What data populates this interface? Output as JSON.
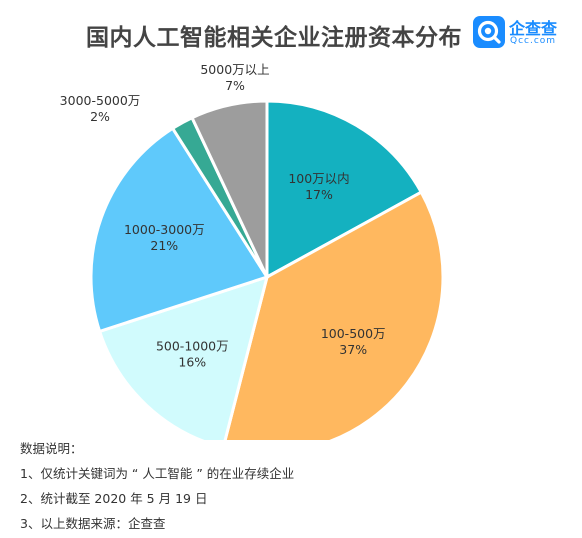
{
  "header": {
    "title": "国内人工智能相关企业注册资本分布",
    "brand_name": "企查查",
    "brand_domain": "Qcc.com"
  },
  "notes": {
    "heading": "数据说明：",
    "items": [
      "1、仅统计关键词为 “ 人工智能 ” 的在业存续企业",
      "2、统计截至 2020 年 5 月 19 日",
      "3、以上数据来源：企查查"
    ]
  },
  "chart_data": {
    "type": "pie",
    "title": "国内人工智能相关企业注册资本分布",
    "unit": "%",
    "slices": [
      {
        "label": "100万以内",
        "value": 17,
        "display": "17%",
        "color": "#14b1c0"
      },
      {
        "label": "100-500万",
        "value": 37,
        "display": "37%",
        "color": "#ffb85f"
      },
      {
        "label": "500-1000万",
        "value": 16,
        "display": "16%",
        "color": "#d1fbfd"
      },
      {
        "label": "1000-3000万",
        "value": 21,
        "display": "21%",
        "color": "#5fc9fb"
      },
      {
        "label": "3000-5000万",
        "value": 2,
        "display": "2%",
        "color": "#36a994"
      },
      {
        "label": "5000万以上",
        "value": 7,
        "display": "7%",
        "color": "#9d9d9d"
      }
    ]
  }
}
